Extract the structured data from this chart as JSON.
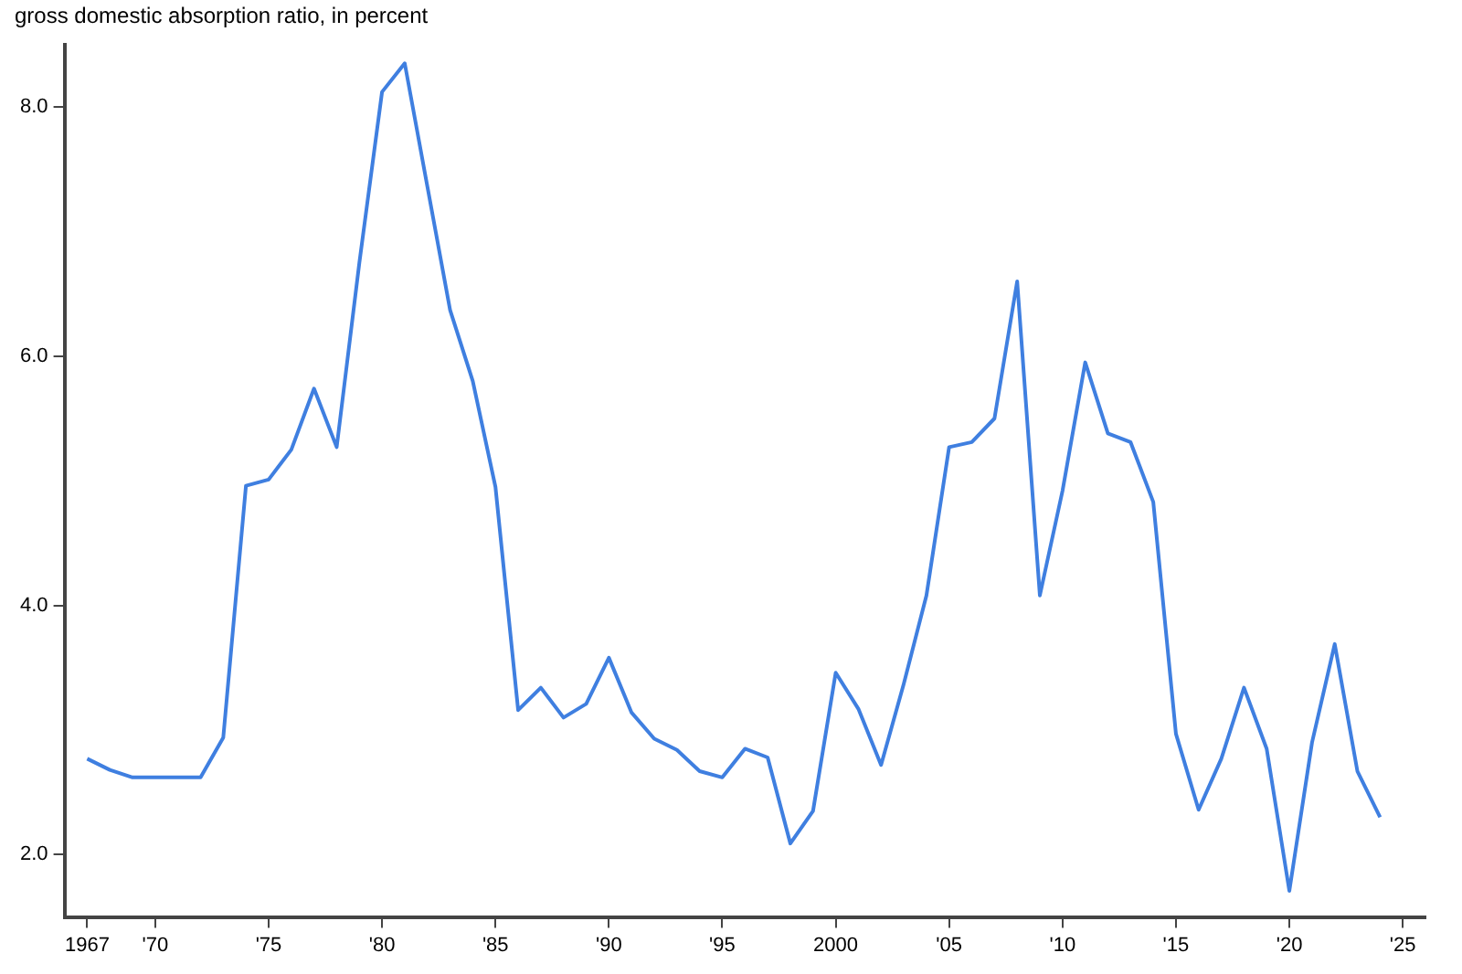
{
  "chart_data": {
    "type": "line",
    "ylabel": "gross domestic absorption ratio, in percent",
    "x": [
      1967,
      1968,
      1969,
      1970,
      1971,
      1972,
      1973,
      1974,
      1975,
      1976,
      1977,
      1978,
      1979,
      1980,
      1981,
      1982,
      1983,
      1984,
      1985,
      1986,
      1987,
      1988,
      1989,
      1990,
      1991,
      1992,
      1993,
      1994,
      1995,
      1996,
      1997,
      1998,
      1999,
      2000,
      2001,
      2002,
      2003,
      2004,
      2005,
      2006,
      2007,
      2008,
      2009,
      2010,
      2011,
      2012,
      2013,
      2014,
      2015,
      2016,
      2017,
      2018,
      2019,
      2020,
      2021,
      2022,
      2023,
      2024
    ],
    "series": [
      {
        "color": "#3f7fe0",
        "values": [
          2.77,
          2.68,
          2.62,
          2.62,
          2.62,
          2.62,
          2.94,
          4.96,
          5.01,
          5.25,
          5.74,
          5.27,
          6.75,
          8.12,
          8.35,
          7.36,
          6.37,
          5.8,
          4.95,
          3.16,
          3.34,
          3.1,
          3.21,
          3.58,
          3.14,
          2.93,
          2.84,
          2.67,
          2.62,
          2.85,
          2.78,
          2.09,
          2.35,
          3.46,
          3.17,
          2.72,
          3.37,
          4.08,
          5.27,
          5.31,
          5.5,
          6.6,
          4.08,
          4.92,
          5.95,
          5.38,
          5.31,
          4.83,
          2.97,
          2.36,
          2.77,
          3.34,
          2.85,
          1.71,
          2.9,
          3.69,
          2.67,
          2.3
        ]
      }
    ],
    "xlim": [
      1966,
      2026
    ],
    "xticks": [
      1967,
      {
        "value": 1970,
        "label": "'70"
      },
      {
        "value": 1975,
        "label": "'75"
      },
      {
        "value": 1980,
        "label": "'80"
      },
      {
        "value": 1985,
        "label": "'85"
      },
      {
        "value": 1990,
        "label": "'90"
      },
      {
        "value": 1995,
        "label": "'95"
      },
      2000,
      {
        "value": 2005,
        "label": "'05"
      },
      {
        "value": 2010,
        "label": "'10"
      },
      {
        "value": 2015,
        "label": "'15"
      },
      {
        "value": 2020,
        "label": "'20"
      },
      {
        "value": 2025,
        "label": "'25"
      }
    ],
    "ylim": [
      1.5,
      8.5
    ],
    "yticks": [
      {
        "value": 2,
        "label": "2.0"
      },
      {
        "value": 4,
        "label": "4.0"
      },
      {
        "value": 6,
        "label": "6.0"
      },
      {
        "value": 8,
        "label": "8.0"
      }
    ],
    "grid": false,
    "legend": false,
    "marker": "none",
    "line_style": "solid"
  }
}
